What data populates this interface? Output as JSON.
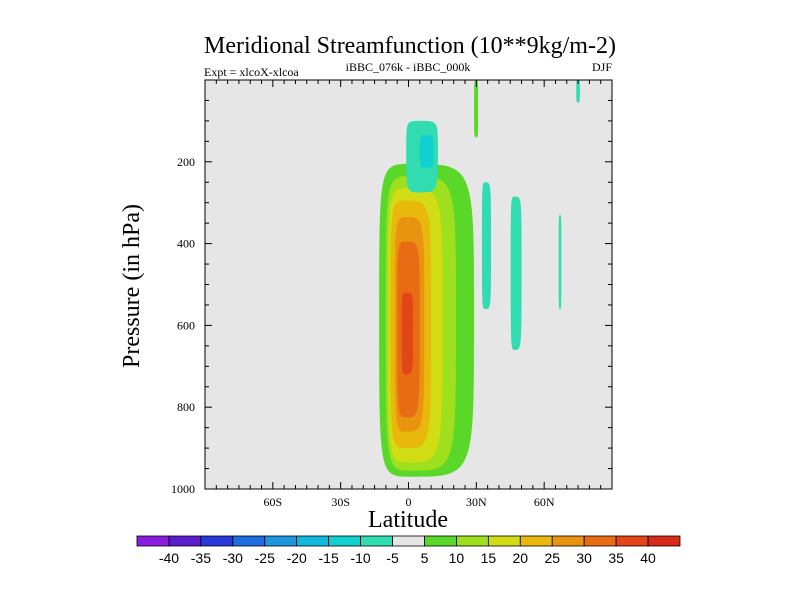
{
  "chart_data": {
    "type": "contour",
    "title": "Meridional Streamfunction (10**9kg/m-2)",
    "subtitle_left": "Expt = xlcoX-xlcoa",
    "subtitle_center": "iBBC_076k - iBBC_000k",
    "subtitle_right": "DJF",
    "xlabel": "Latitude",
    "ylabel": "Pressure (in hPa)",
    "xlim": [
      -90,
      90
    ],
    "ylim": [
      1000,
      0
    ],
    "x_ticks": [
      {
        "value": -60,
        "label": "60S"
      },
      {
        "value": -30,
        "label": "30S"
      },
      {
        "value": 0,
        "label": "0"
      },
      {
        "value": 30,
        "label": "30N"
      },
      {
        "value": 60,
        "label": "60N"
      }
    ],
    "y_ticks": [
      {
        "value": 200,
        "label": "200"
      },
      {
        "value": 400,
        "label": "400"
      },
      {
        "value": 600,
        "label": "600"
      },
      {
        "value": 800,
        "label": "800"
      },
      {
        "value": 1000,
        "label": "1000"
      }
    ],
    "background_color": "#e6e6e6",
    "levels": [
      -40,
      -35,
      -30,
      -25,
      -20,
      -15,
      -10,
      -5,
      5,
      10,
      15,
      20,
      25,
      30,
      35,
      40
    ],
    "level_labels": [
      "-40",
      "-35",
      "-30",
      "-25",
      "-20",
      "-15",
      "-10",
      "-5",
      "5",
      "10",
      "15",
      "20",
      "25",
      "30",
      "35",
      "40"
    ],
    "colors": [
      "#8a1ee0",
      "#5a1ecc",
      "#2a3ad8",
      "#1f6ee0",
      "#1e96de",
      "#10b8dc",
      "#10d0d0",
      "#30dcb0",
      "#e6e6e6",
      "#5ad82a",
      "#9ee01e",
      "#d2dc14",
      "#e8b80c",
      "#e89410",
      "#e86c14",
      "#e24618",
      "#d82a1a"
    ],
    "features": [
      {
        "name": "positive-cell-level-5",
        "color_index": 9,
        "center": [
          1,
          580
        ],
        "half_width": [
          14,
          28
        ],
        "p_range": [
          205,
          970
        ]
      },
      {
        "name": "positive-cell-level-10",
        "color_index": 10,
        "center": [
          1,
          580
        ],
        "half_width": [
          11,
          20
        ],
        "p_range": [
          235,
          955
        ]
      },
      {
        "name": "positive-cell-level-15",
        "color_index": 11,
        "center": [
          0,
          580
        ],
        "half_width": [
          9,
          15
        ],
        "p_range": [
          265,
          935
        ]
      },
      {
        "name": "positive-cell-level-20",
        "color_index": 12,
        "center": [
          -1,
          580
        ],
        "half_width": [
          7,
          11
        ],
        "p_range": [
          295,
          900
        ]
      },
      {
        "name": "positive-cell-level-25",
        "color_index": 13,
        "center": [
          -1,
          580
        ],
        "half_width": [
          5,
          8
        ],
        "p_range": [
          335,
          860
        ]
      },
      {
        "name": "positive-cell-level-30",
        "color_index": 14,
        "center": [
          -1,
          580
        ],
        "half_width": [
          4,
          6
        ],
        "p_range": [
          395,
          825
        ]
      },
      {
        "name": "positive-cell-level-35",
        "color_index": 15,
        "center": [
          -1,
          600
        ],
        "half_width": [
          2,
          3
        ],
        "p_range": [
          520,
          720
        ]
      },
      {
        "name": "negative-cell-upper-eq-level-5",
        "color_index": 7,
        "center": [
          5,
          170
        ],
        "half_width": [
          6,
          8
        ],
        "p_range": [
          100,
          275
        ]
      },
      {
        "name": "negative-cell-upper-eq-level-10",
        "color_index": 6,
        "center": [
          8,
          175
        ],
        "half_width": [
          3,
          3
        ],
        "p_range": [
          135,
          215
        ]
      },
      {
        "name": "negative-cell-35n",
        "color_index": 7,
        "center": [
          34,
          400
        ],
        "half_width": [
          1.5,
          2.5
        ],
        "p_range": [
          250,
          560
        ]
      },
      {
        "name": "negative-cell-47n",
        "color_index": 7,
        "center": [
          47,
          450
        ],
        "half_width": [
          1.8,
          3
        ],
        "p_range": [
          285,
          660
        ]
      },
      {
        "name": "negative-sliver-67n",
        "color_index": 7,
        "center": [
          67,
          450
        ],
        "half_width": [
          0.6,
          0.6
        ],
        "p_range": [
          330,
          560
        ]
      },
      {
        "name": "negative-sliver-top-75n",
        "color_index": 7,
        "center": [
          75,
          20
        ],
        "half_width": [
          0.8,
          0.8
        ],
        "p_range": [
          0,
          55
        ]
      },
      {
        "name": "positive-sliver-top-30n",
        "color_index": 9,
        "center": [
          30,
          75
        ],
        "half_width": [
          1,
          0.8
        ],
        "p_range": [
          0,
          140
        ]
      }
    ]
  }
}
